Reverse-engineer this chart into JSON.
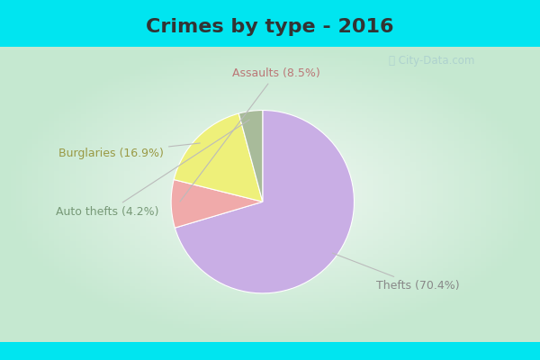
{
  "title": "Crimes by type - 2016",
  "slices": [
    {
      "label": "Thefts (70.4%)",
      "value": 70.4,
      "color": "#c9aee5"
    },
    {
      "label": "Assaults (8.5%)",
      "value": 8.5,
      "color": "#f0aaaa"
    },
    {
      "label": "Burglaries (16.9%)",
      "value": 16.9,
      "color": "#eef07a"
    },
    {
      "label": "Auto thefts (4.2%)",
      "value": 4.2,
      "color": "#a8bb9a"
    }
  ],
  "startangle": 90,
  "counterclock": false,
  "background_cyan": "#00e5f0",
  "background_body": "#d6ede0",
  "title_color": "#333333",
  "title_fontsize": 16,
  "label_fontsize": 9,
  "watermark": "City-Data.com",
  "watermark_color": "#aacece"
}
